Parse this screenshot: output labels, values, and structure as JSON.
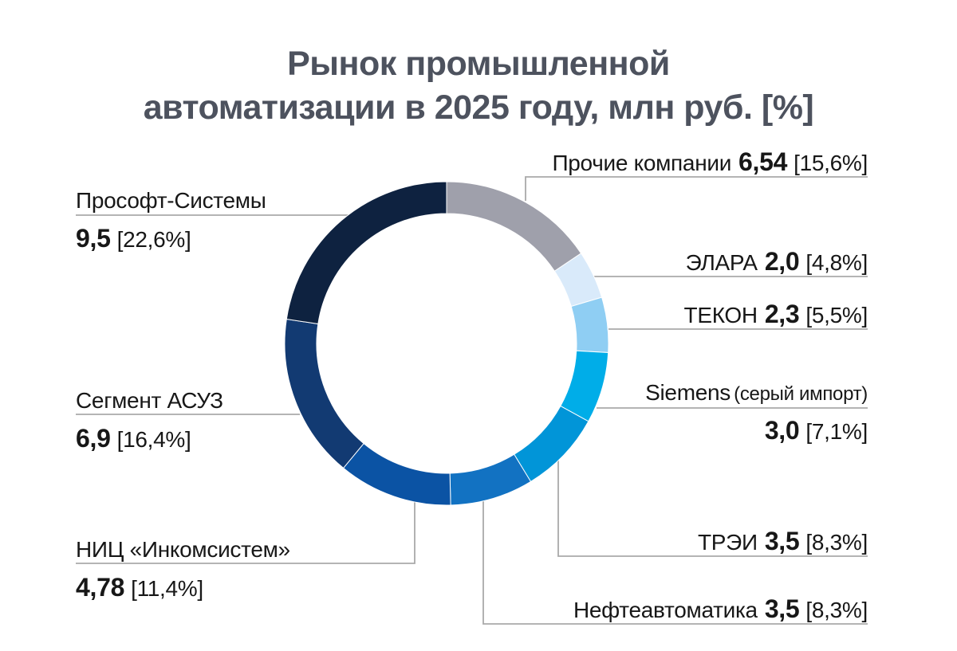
{
  "title_lines": [
    "Рынок промышленной",
    "автоматизации в 2025 году, млн руб. [%]"
  ],
  "colors": {
    "title": "#4d525e",
    "label_text": "#171717",
    "leader_line": "#a9a9a9",
    "background": "#ffffff",
    "slice_divider": "#ffffff"
  },
  "chart_data": {
    "type": "pie",
    "subtype": "donut",
    "title": "Рынок промышленной автоматизации в 2025 году, млн руб. [%]",
    "units": "млн руб.",
    "direction": "clockwise",
    "start_angle_deg": 0,
    "legend_position": "callout-labels",
    "segments": [
      {
        "label": "Прочие компании",
        "value": "6,54",
        "value_num": 6.54,
        "percent": 15.6,
        "percent_label": "[15,6%]",
        "color": "#9fa0ab"
      },
      {
        "label": "ЭЛАРА",
        "value": "2,0",
        "value_num": 2.0,
        "percent": 4.8,
        "percent_label": "[4,8%]",
        "color": "#d9eafa"
      },
      {
        "label": "ТЕКОН",
        "value": "2,3",
        "value_num": 2.3,
        "percent": 5.5,
        "percent_label": "[5,5%]",
        "color": "#8fcef3"
      },
      {
        "label": "Siemens",
        "label_suffix": "(серый импорт)",
        "value": "3,0",
        "value_num": 3.0,
        "percent": 7.1,
        "percent_label": "[7,1%]",
        "color": "#00ade8"
      },
      {
        "label": "ТРЭИ",
        "value": "3,5",
        "value_num": 3.5,
        "percent": 8.3,
        "percent_label": "[8,3%]",
        "color": "#0195d8"
      },
      {
        "label": "Нефтеавтоматика",
        "value": "3,5",
        "value_num": 3.5,
        "percent": 8.3,
        "percent_label": "[8,3%]",
        "color": "#1272c2"
      },
      {
        "label": "НИЦ «Инкомсистем»",
        "value": "4,78",
        "value_num": 4.78,
        "percent": 11.4,
        "percent_label": "[11,4%]",
        "color": "#0b53a4"
      },
      {
        "label": "Сегмент АСУЗ",
        "value": "6,9",
        "value_num": 6.9,
        "percent": 16.4,
        "percent_label": "[16,4%]",
        "color": "#123a72"
      },
      {
        "label": "Прософт-Системы",
        "value": "9,5",
        "value_num": 9.5,
        "percent": 22.6,
        "percent_label": "[22,6%]",
        "color": "#0e2240"
      }
    ]
  }
}
